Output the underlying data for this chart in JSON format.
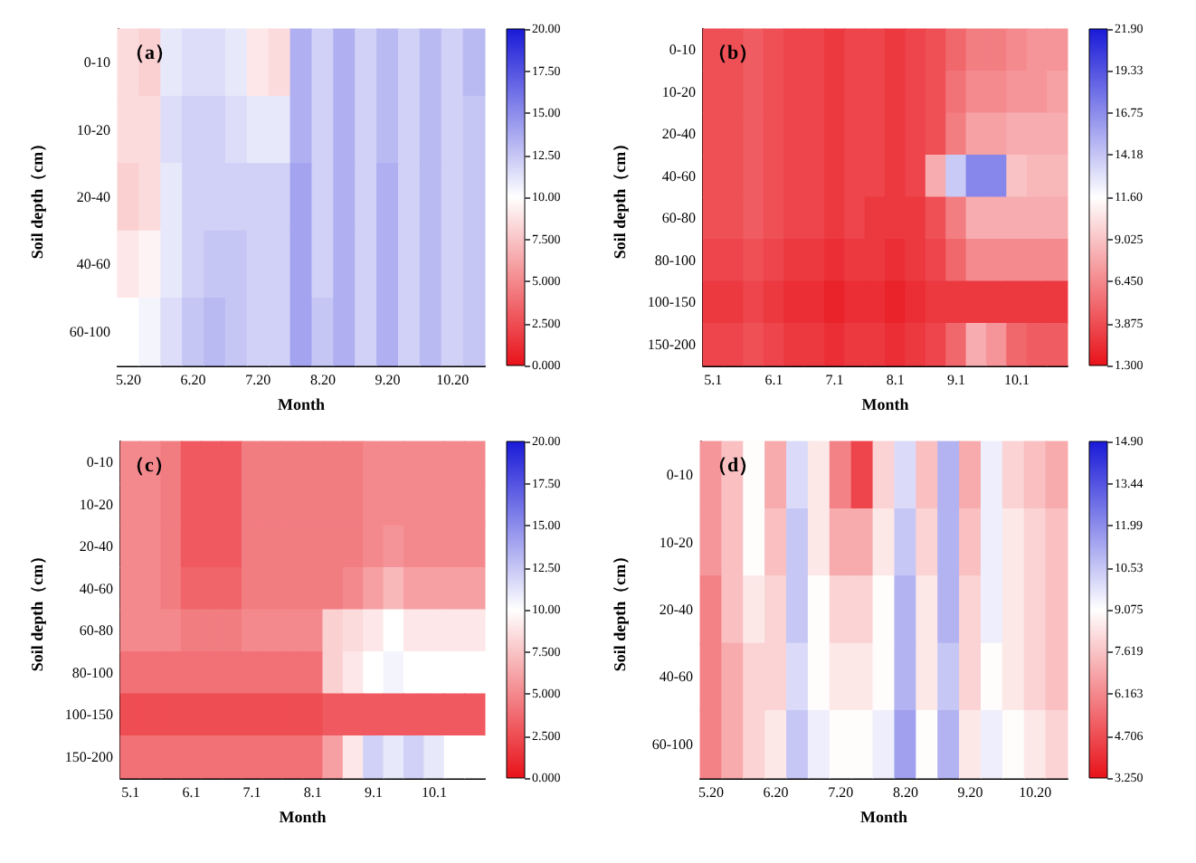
{
  "chart_data": [
    {
      "type": "heatmap",
      "title": "（a）",
      "xlabel": "Month",
      "ylabel": "Soil depth（cm）",
      "categories": [
        "5.20",
        null,
        null,
        "6.20",
        null,
        null,
        "7.20",
        null,
        null,
        "8.20",
        null,
        null,
        "9.20",
        null,
        null,
        "10.20",
        null
      ],
      "y_categories": [
        "0-10",
        "10-20",
        "20-40",
        "40-60",
        "60-100"
      ],
      "cells": [
        [
          8.5,
          8,
          11,
          11.5,
          11.5,
          11,
          9,
          8.5,
          13.5,
          12,
          13.5,
          12,
          13,
          12,
          13,
          12,
          13
        ],
        [
          8.5,
          8.5,
          11.5,
          12,
          12,
          11.5,
          11,
          11,
          13.5,
          12,
          13.5,
          12,
          13,
          12,
          13,
          12,
          12.5
        ],
        [
          8,
          8.5,
          11,
          12,
          12,
          12,
          12,
          12,
          14,
          12,
          13.5,
          12,
          13.5,
          12,
          13,
          12,
          12.5
        ],
        [
          9,
          9.5,
          11,
          12,
          12.5,
          12.5,
          12,
          12,
          14,
          12,
          13.5,
          12,
          13.5,
          12,
          13,
          12,
          12.5
        ],
        [
          10,
          10.5,
          11.5,
          12.5,
          13,
          12.5,
          12,
          12,
          14,
          12.5,
          13.5,
          12,
          13.5,
          12,
          13,
          12,
          12.5
        ]
      ],
      "clim": [
        0,
        20
      ],
      "cticks": [
        {
          "value": 0,
          "label": "0.000"
        },
        {
          "value": 2.5,
          "label": "2.500"
        },
        {
          "value": 5,
          "label": "5.000"
        },
        {
          "value": 7.5,
          "label": "7.500"
        },
        {
          "value": 10,
          "label": "10.00"
        },
        {
          "value": 12.5,
          "label": "12.50"
        },
        {
          "value": 15,
          "label": "15.00"
        },
        {
          "value": 17.5,
          "label": "17.50"
        },
        {
          "value": 20,
          "label": "20.00"
        }
      ]
    },
    {
      "type": "heatmap",
      "title": "（b）",
      "xlabel": "Month",
      "ylabel": "Soil depth（cm）",
      "categories": [
        "5.1",
        null,
        null,
        "6.1",
        null,
        null,
        "7.1",
        null,
        null,
        "8.1",
        null,
        null,
        "9.1",
        null,
        null,
        "10.1",
        null,
        null
      ],
      "y_categories": [
        "0-10",
        "10-20",
        "20-40",
        "40-60",
        "60-80",
        "80-100",
        "100-150",
        "150-200"
      ],
      "cells": [
        [
          4,
          4,
          4.5,
          4,
          3.5,
          3.5,
          3,
          3.5,
          3.5,
          3,
          3.5,
          4,
          5,
          6,
          6,
          6.5,
          7,
          7
        ],
        [
          4,
          4,
          4.5,
          4,
          3.5,
          3.5,
          3,
          3.5,
          3.5,
          3,
          3.5,
          4,
          5.5,
          6.5,
          6.5,
          7,
          7,
          7.5
        ],
        [
          4,
          4,
          4.5,
          4,
          3.5,
          3.5,
          3,
          3.5,
          3.5,
          3,
          3.5,
          4,
          6,
          7.5,
          7.5,
          8,
          8,
          8
        ],
        [
          4,
          4,
          4.5,
          4,
          3.5,
          3.5,
          3,
          3.5,
          3.5,
          3,
          3.5,
          8,
          14,
          17,
          17,
          9,
          8.5,
          8.5
        ],
        [
          4,
          4,
          4.5,
          4,
          3.5,
          3.5,
          3,
          3.5,
          3,
          3,
          3,
          4,
          6,
          8,
          8,
          8,
          8,
          8
        ],
        [
          3.5,
          3.5,
          4,
          3.5,
          3,
          3,
          2.5,
          3,
          3,
          2.5,
          3,
          3.5,
          5,
          6.5,
          6.5,
          6.5,
          6.5,
          6.5
        ],
        [
          3,
          3,
          3.5,
          3,
          2.5,
          2.5,
          2,
          2.5,
          2.5,
          2,
          2.5,
          3,
          3,
          3,
          3,
          3,
          3,
          3
        ],
        [
          3.5,
          3.5,
          4,
          3.5,
          3,
          3,
          2.5,
          3,
          3,
          2.5,
          3,
          3.5,
          5,
          8,
          7,
          5,
          4.5,
          4.5
        ]
      ],
      "clim": [
        1.3,
        21.9
      ],
      "cticks": [
        {
          "value": 1.3,
          "label": "1.300"
        },
        {
          "value": 3.875,
          "label": "3.875"
        },
        {
          "value": 6.45,
          "label": "6.450"
        },
        {
          "value": 9.025,
          "label": "9.025"
        },
        {
          "value": 11.6,
          "label": "11.60"
        },
        {
          "value": 14.18,
          "label": "14.18"
        },
        {
          "value": 16.75,
          "label": "16.75"
        },
        {
          "value": 19.33,
          "label": "19.33"
        },
        {
          "value": 21.9,
          "label": "21.90"
        }
      ]
    },
    {
      "type": "heatmap",
      "title": "（c）",
      "xlabel": "Month",
      "ylabel": "Soil depth（cm）",
      "categories": [
        "5.1",
        null,
        null,
        "6.1",
        null,
        null,
        "7.1",
        null,
        null,
        "8.1",
        null,
        null,
        "9.1",
        null,
        null,
        "10.1",
        null,
        null
      ],
      "y_categories": [
        "0-10",
        "10-20",
        "20-40",
        "40-60",
        "60-80",
        "80-100",
        "100-150",
        "150-200"
      ],
      "cells": [
        [
          5,
          5,
          4.5,
          3,
          3,
          3,
          4.5,
          4.5,
          4.5,
          4.5,
          4.5,
          4.5,
          5,
          5,
          5,
          5,
          5,
          5
        ],
        [
          5,
          5,
          4.5,
          3,
          3,
          3,
          4.5,
          4.5,
          4.5,
          4.5,
          4.5,
          4.5,
          5,
          5,
          5,
          5,
          5,
          5
        ],
        [
          5,
          5,
          4.5,
          3,
          3,
          3,
          4.5,
          4.5,
          4.5,
          4.5,
          4.5,
          4.5,
          5,
          5.5,
          5,
          5,
          5,
          5
        ],
        [
          5,
          5,
          4.5,
          3.5,
          3.5,
          3.5,
          4.5,
          4.5,
          4.5,
          4.5,
          4.5,
          5,
          6,
          7,
          6,
          6,
          6,
          6
        ],
        [
          5,
          5,
          5,
          4.5,
          4.5,
          4.5,
          5,
          5,
          5,
          5,
          8,
          8.5,
          9,
          10,
          9,
          9,
          9,
          9
        ],
        [
          4,
          4,
          4,
          4,
          4,
          4,
          4,
          4,
          4,
          4,
          8,
          9,
          10,
          10.5,
          10,
          10,
          10,
          10
        ],
        [
          2.5,
          2.5,
          2.5,
          2.5,
          2.5,
          2.5,
          2.5,
          2.5,
          2.5,
          2.5,
          3,
          3,
          3,
          3,
          3,
          3,
          3,
          3
        ],
        [
          4,
          4,
          4,
          4,
          4,
          4,
          4,
          4,
          4,
          4,
          6,
          9,
          12,
          11,
          12,
          11,
          10,
          10
        ]
      ],
      "clim": [
        0,
        20
      ],
      "cticks": [
        {
          "value": 0,
          "label": "0.000"
        },
        {
          "value": 2.5,
          "label": "2.500"
        },
        {
          "value": 5,
          "label": "5.000"
        },
        {
          "value": 7.5,
          "label": "7.500"
        },
        {
          "value": 10,
          "label": "10.00"
        },
        {
          "value": 12.5,
          "label": "12.50"
        },
        {
          "value": 15,
          "label": "15.00"
        },
        {
          "value": 17.5,
          "label": "17.50"
        },
        {
          "value": 20,
          "label": "20.00"
        }
      ]
    },
    {
      "type": "heatmap",
      "title": "（d）",
      "xlabel": "Month",
      "ylabel": "Soil depth（cm）",
      "categories": [
        "5.20",
        null,
        null,
        "6.20",
        null,
        null,
        "7.20",
        null,
        null,
        "8.20",
        null,
        null,
        "9.20",
        null,
        null,
        "10.20",
        null
      ],
      "y_categories": [
        "0-10",
        "10-20",
        "20-40",
        "40-60",
        "60-100"
      ],
      "cells": [
        [
          6.5,
          7.5,
          9,
          7,
          10,
          8.5,
          6,
          4.5,
          8,
          10,
          7.5,
          11,
          7,
          9.5,
          8,
          7.5,
          7
        ],
        [
          6.5,
          7.5,
          9,
          7.5,
          10.5,
          8.5,
          7,
          7,
          8.5,
          10.5,
          8,
          11,
          7.5,
          9.5,
          8.5,
          8,
          7.5
        ],
        [
          6,
          7.5,
          8.5,
          8,
          10.5,
          9,
          8,
          8,
          9,
          11,
          8.5,
          11,
          8,
          9.5,
          8.5,
          8,
          7.5
        ],
        [
          6,
          7,
          8,
          8,
          10,
          9,
          8.5,
          8.5,
          9,
          11,
          8.5,
          10.5,
          8,
          9,
          8.5,
          8,
          7.5
        ],
        [
          6,
          7,
          8,
          8.5,
          10.5,
          9.5,
          9,
          9,
          9.5,
          11.5,
          9,
          11,
          8.5,
          9.5,
          9,
          8.5,
          8
        ]
      ],
      "clim": [
        3.25,
        14.9
      ],
      "cticks": [
        {
          "value": 3.25,
          "label": "3.250"
        },
        {
          "value": 4.706,
          "label": "4.706"
        },
        {
          "value": 6.163,
          "label": "6.163"
        },
        {
          "value": 7.619,
          "label": "7.619"
        },
        {
          "value": 9.075,
          "label": "9.075"
        },
        {
          "value": 10.53,
          "label": "10.53"
        },
        {
          "value": 11.99,
          "label": "11.99"
        },
        {
          "value": 13.44,
          "label": "13.44"
        },
        {
          "value": 14.9,
          "label": "14.90"
        }
      ]
    }
  ]
}
